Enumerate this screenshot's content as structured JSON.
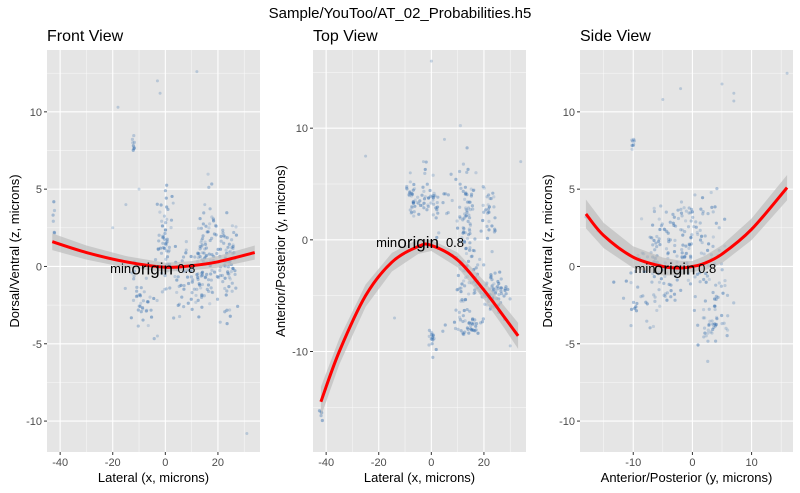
{
  "figure": {
    "title": "Sample/YouToo/AT_02_Probabilities.h5",
    "panel_background": "#e5e5e5",
    "grid_color": "#ffffff",
    "point_color": "#2e6aad",
    "fit_color": "#ff0000",
    "ci_color": "#bdbdbd"
  },
  "chart_data": [
    {
      "type": "scatter",
      "title": "Front View",
      "xlabel": "Lateral (x, microns)",
      "ylabel": "Dorsal/Ventral (z, microns)",
      "xlim": [
        -45,
        36
      ],
      "ylim": [
        -12,
        14
      ],
      "x_ticks": [
        -40,
        -20,
        0,
        20
      ],
      "y_ticks": [
        -10,
        -5,
        0,
        5,
        10
      ],
      "annotations": [
        {
          "text": "min",
          "x": -17,
          "y": -0.1,
          "size": "normal"
        },
        {
          "text": "origin",
          "x": -5,
          "y": -0.2,
          "size": "large"
        },
        {
          "text": "0.8",
          "x": 8,
          "y": -0.1,
          "size": "normal"
        }
      ],
      "fit_curve": {
        "x": [
          -43,
          -30,
          -15,
          0,
          10,
          20,
          34
        ],
        "y": [
          1.6,
          0.9,
          0.3,
          -0.05,
          0.05,
          0.3,
          0.9
        ],
        "ci": 0.25
      },
      "clusters": [
        {
          "cx": 15,
          "cy": 0.5,
          "sx": 3,
          "sy": 1.8,
          "n": 120,
          "tilt": 1.2
        },
        {
          "cx": 24,
          "cy": 0.5,
          "sx": 2,
          "sy": 1.6,
          "n": 70,
          "tilt": 0.5
        },
        {
          "cx": 0,
          "cy": 1.6,
          "sx": 1.5,
          "sy": 1.4,
          "n": 60,
          "tilt": 0
        },
        {
          "cx": -8,
          "cy": -2.2,
          "sx": 2.5,
          "sy": 1.0,
          "n": 40,
          "tilt": -1
        },
        {
          "cx": 6,
          "cy": -1,
          "sx": 1.5,
          "sy": 1.2,
          "n": 25,
          "tilt": 1.5
        },
        {
          "cx": -12,
          "cy": 7.8,
          "sx": 0.4,
          "sy": 0.3,
          "n": 8,
          "tilt": 0
        },
        {
          "cx": -42,
          "cy": 2.8,
          "sx": 0.6,
          "sy": 0.5,
          "n": 6,
          "tilt": 0
        }
      ],
      "outliers": [
        [
          -18,
          10.3
        ],
        [
          -3,
          12
        ],
        [
          -2,
          11.2
        ],
        [
          12,
          12.6
        ],
        [
          31,
          -10.8
        ],
        [
          -10,
          5
        ],
        [
          -20,
          2.5
        ],
        [
          -15,
          4
        ],
        [
          15,
          4
        ],
        [
          -3,
          -4.5
        ],
        [
          3,
          4.1
        ]
      ]
    },
    {
      "type": "scatter",
      "title": "Top View",
      "xlabel": "Lateral (x, microns)",
      "ylabel": "Anterior/Posterior (y, microns)",
      "xlim": [
        -45,
        36
      ],
      "ylim": [
        -19,
        17
      ],
      "x_ticks": [
        -40,
        -20,
        0,
        20
      ],
      "y_ticks": [
        -10,
        0,
        10
      ],
      "annotations": [
        {
          "text": "min",
          "x": -17,
          "y": -0.2,
          "size": "normal"
        },
        {
          "text": "origin",
          "x": -5,
          "y": -0.3,
          "size": "large"
        },
        {
          "text": "0.8",
          "x": 9,
          "y": -0.2,
          "size": "normal"
        }
      ],
      "fit_curve": {
        "x": [
          -42,
          -35,
          -25,
          -15,
          -5,
          0,
          10,
          20,
          28,
          33
        ],
        "y": [
          -14.5,
          -10,
          -5,
          -2,
          -0.6,
          -0.5,
          -1.8,
          -4.5,
          -7,
          -8.6
        ],
        "ci": 0.5
      },
      "clusters": [
        {
          "cx": 13,
          "cy": 1.5,
          "sx": 2,
          "sy": 2.5,
          "n": 80,
          "tilt": 0
        },
        {
          "cx": 15,
          "cy": -3.5,
          "sx": 3,
          "sy": 1.2,
          "n": 40,
          "tilt": 0
        },
        {
          "cx": 22,
          "cy": -5,
          "sx": 2.5,
          "sy": 0.8,
          "n": 50,
          "tilt": 0
        },
        {
          "cx": 22,
          "cy": 2.5,
          "sx": 1.2,
          "sy": 1.5,
          "n": 30,
          "tilt": 0
        },
        {
          "cx": 0,
          "cy": 3.5,
          "sx": 3,
          "sy": 1.2,
          "n": 50,
          "tilt": 0
        },
        {
          "cx": -7,
          "cy": 3.8,
          "sx": 1.5,
          "sy": 0.8,
          "n": 30,
          "tilt": 0
        },
        {
          "cx": 13,
          "cy": -7.5,
          "sx": 3.5,
          "sy": 0.6,
          "n": 45,
          "tilt": 0
        },
        {
          "cx": 0,
          "cy": -9,
          "sx": 0.8,
          "sy": 0.6,
          "n": 15,
          "tilt": 0
        },
        {
          "cx": 26,
          "cy": -4.5,
          "sx": 2,
          "sy": 1,
          "n": 25,
          "tilt": 0
        },
        {
          "cx": -42,
          "cy": -16,
          "sx": 0.5,
          "sy": 0.6,
          "n": 5,
          "tilt": 0
        }
      ],
      "outliers": [
        [
          0,
          16
        ],
        [
          -25,
          7.5
        ],
        [
          -8,
          6
        ],
        [
          -14,
          -7
        ],
        [
          30,
          -9.5
        ],
        [
          5,
          9
        ],
        [
          -3,
          7
        ],
        [
          34,
          7
        ]
      ]
    },
    {
      "type": "scatter",
      "title": "Side View",
      "xlabel": "Anterior/Posterior (y, microns)",
      "ylabel": "Dorsal/Ventral (z, microns)",
      "xlim": [
        -19,
        17
      ],
      "ylim": [
        -12,
        14
      ],
      "x_ticks": [
        -10,
        0,
        10
      ],
      "y_ticks": [
        -10,
        -5,
        0,
        5,
        10
      ],
      "annotations": [
        {
          "text": "min",
          "x": -8,
          "y": -0.1,
          "size": "normal"
        },
        {
          "text": "origin",
          "x": -3,
          "y": -0.2,
          "size": "large"
        },
        {
          "text": "0.8",
          "x": 2.5,
          "y": -0.1,
          "size": "normal"
        }
      ],
      "fit_curve": {
        "x": [
          -18,
          -15,
          -10,
          -5,
          -2,
          0,
          2,
          5,
          10,
          16
        ],
        "y": [
          3.4,
          2.0,
          0.6,
          0.0,
          -0.1,
          0.0,
          0.2,
          0.8,
          2.4,
          5.1
        ],
        "ci": 0.35
      },
      "clusters": [
        {
          "cx": -5,
          "cy": 1.5,
          "sx": 3,
          "sy": 1.5,
          "n": 90,
          "tilt": 1.5
        },
        {
          "cx": 0,
          "cy": 1.5,
          "sx": 2,
          "sy": 1.8,
          "n": 70,
          "tilt": 1.2
        },
        {
          "cx": 3.5,
          "cy": -0.5,
          "sx": 1.5,
          "sy": 2.5,
          "n": 50,
          "tilt": 1
        },
        {
          "cx": -7,
          "cy": -1.5,
          "sx": 2.5,
          "sy": 1.2,
          "n": 40,
          "tilt": 0.8
        },
        {
          "cx": -10,
          "cy": 7.7,
          "sx": 0.3,
          "sy": 0.5,
          "n": 8,
          "tilt": 0
        },
        {
          "cx": 4,
          "cy": -3.8,
          "sx": 1.2,
          "sy": 0.6,
          "n": 25,
          "tilt": 0
        }
      ],
      "outliers": [
        [
          -2,
          11.5
        ],
        [
          5,
          11.8
        ],
        [
          7,
          11.2
        ],
        [
          7,
          10.7
        ],
        [
          -5,
          10.8
        ],
        [
          16,
          12.5
        ],
        [
          -18,
          3.2
        ],
        [
          -16,
          2.3
        ]
      ]
    }
  ]
}
